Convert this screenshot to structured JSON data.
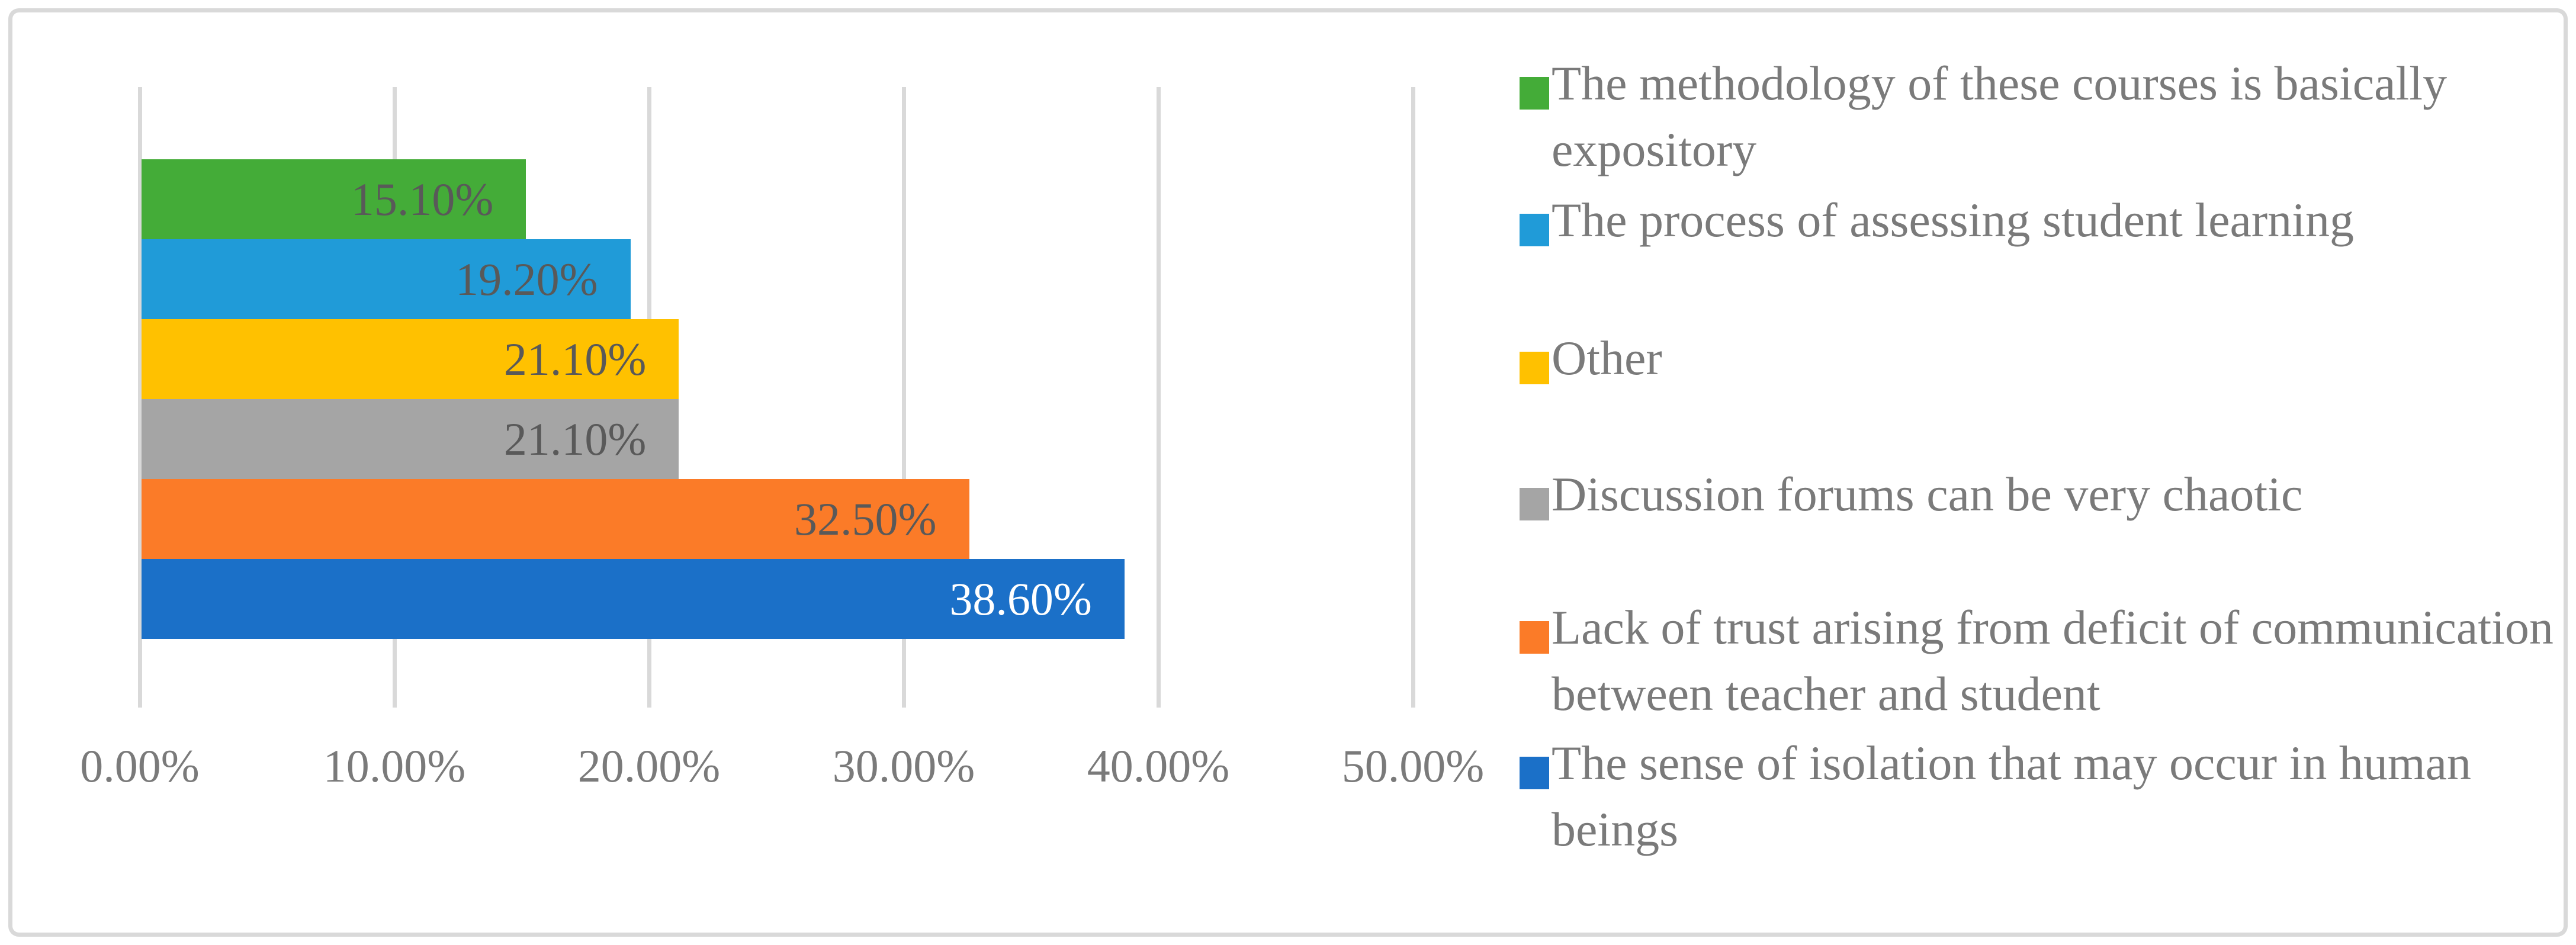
{
  "figure": {
    "background": "#FFFFFF",
    "border_color": "#D9D9D9"
  },
  "chart_data": {
    "type": "bar",
    "orientation": "horizontal",
    "title": "",
    "xlabel": "",
    "ylabel": "",
    "categories": [
      "The methodology of these courses is basically expository",
      "The process of assessing student learning",
      "Other",
      "Discussion forums can be very chaotic",
      "Lack of trust arising from deficit of communication between teacher and student",
      "The sense of isolation that may occur in human beings"
    ],
    "values": [
      15.1,
      19.2,
      21.1,
      21.1,
      32.5,
      38.6
    ],
    "value_labels": [
      "15.10%",
      "19.20%",
      "21.10%",
      "21.10%",
      "32.50%",
      "38.60%"
    ],
    "bar_colors": [
      "#44AC38",
      "#209BD8",
      "#FFC100",
      "#A5A5A5",
      "#FB7B28",
      "#1B70C8"
    ],
    "value_label_colors": [
      "#595959",
      "#595959",
      "#595959",
      "#595959",
      "#595959",
      "#FFFFFF"
    ],
    "xlim": [
      0,
      50
    ],
    "x_ticks": [
      {
        "value": 0,
        "label": "0.00%"
      },
      {
        "value": 10,
        "label": "10.00%"
      },
      {
        "value": 20,
        "label": "20.00%"
      },
      {
        "value": 30,
        "label": "30.00%"
      },
      {
        "value": 40,
        "label": "40.00%"
      },
      {
        "value": 50,
        "label": "50.00%"
      }
    ],
    "grid": "vertical gridlines only",
    "gridline_color": "#D9D9D9",
    "axis_text_color": "#7A7A7A",
    "legend_position": "right",
    "legend_text_color": "#7A7A7A"
  }
}
